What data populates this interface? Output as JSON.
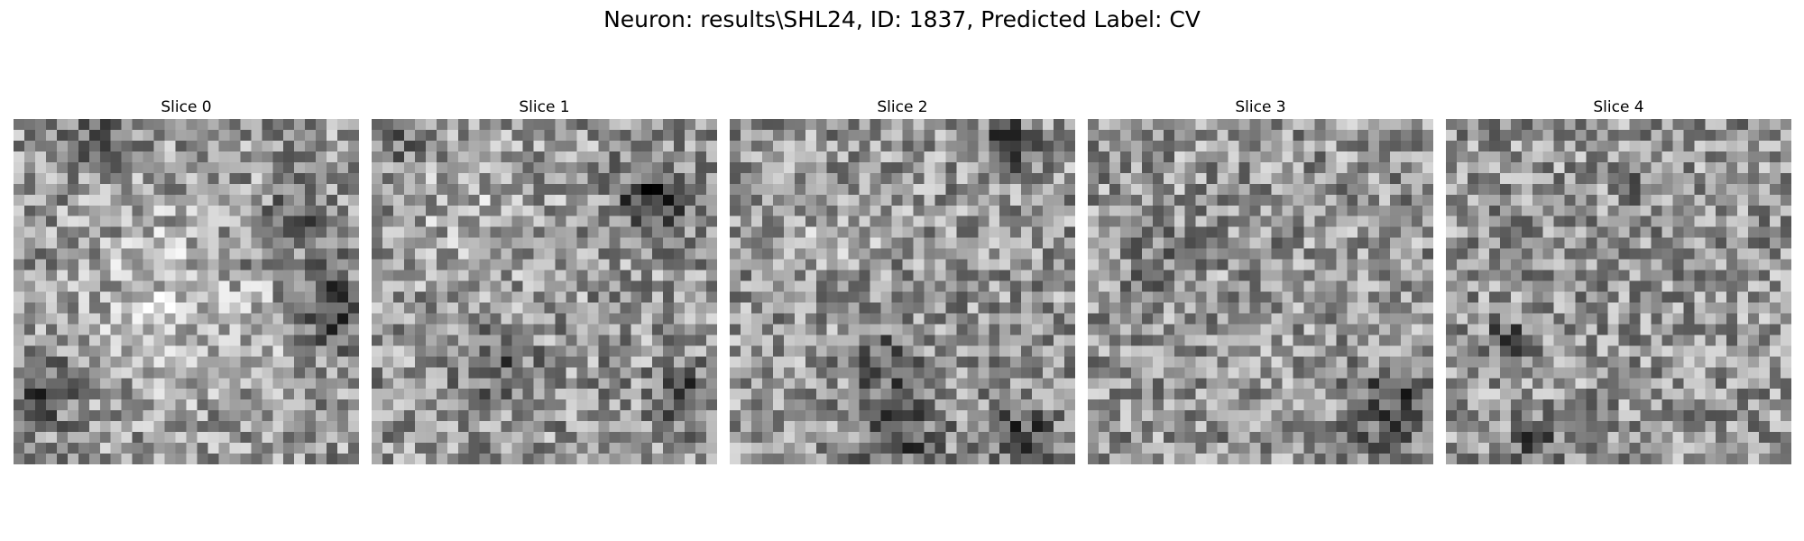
{
  "figure": {
    "title": "Neuron: results\\SHL24, ID: 1837, Predicted Label: CV",
    "colormap": "gray"
  },
  "panels": [
    {
      "title": "Slice 0",
      "grid": 32,
      "seed": 11,
      "blobs": [
        {
          "r": 0.52,
          "c": 0.5,
          "rad": 0.3,
          "a": 42
        },
        {
          "r": 0.55,
          "c": 0.93,
          "rad": 0.1,
          "a": -110
        },
        {
          "r": 0.3,
          "c": 0.82,
          "rad": 0.1,
          "a": -60
        },
        {
          "r": 0.05,
          "c": 0.25,
          "rad": 0.1,
          "a": -55
        },
        {
          "r": 0.8,
          "c": 0.05,
          "rad": 0.12,
          "a": -60
        },
        {
          "r": 0.4,
          "c": 0.65,
          "rad": 0.07,
          "a": -45
        }
      ]
    },
    {
      "title": "Slice 1",
      "grid": 32,
      "seed": 23,
      "blobs": [
        {
          "r": 0.22,
          "c": 0.82,
          "rad": 0.09,
          "a": -120
        },
        {
          "r": 0.72,
          "c": 0.36,
          "rad": 0.1,
          "a": -55
        },
        {
          "r": 0.82,
          "c": 0.92,
          "rad": 0.08,
          "a": -80
        },
        {
          "r": 0.3,
          "c": 0.3,
          "rad": 0.22,
          "a": 25
        },
        {
          "r": 0.05,
          "c": 0.05,
          "rad": 0.07,
          "a": -50
        }
      ]
    },
    {
      "title": "Slice 2",
      "grid": 32,
      "seed": 37,
      "blobs": [
        {
          "r": 0.05,
          "c": 0.82,
          "rad": 0.07,
          "a": -110
        },
        {
          "r": 0.93,
          "c": 0.5,
          "rad": 0.12,
          "a": -70
        },
        {
          "r": 0.93,
          "c": 0.85,
          "rad": 0.1,
          "a": -80
        },
        {
          "r": 0.7,
          "c": 0.45,
          "rad": 0.1,
          "a": -60
        },
        {
          "r": 0.3,
          "c": 0.3,
          "rad": 0.15,
          "a": 20
        }
      ]
    },
    {
      "title": "Slice 3",
      "grid": 32,
      "seed": 51,
      "blobs": [
        {
          "r": 0.85,
          "c": 0.9,
          "rad": 0.12,
          "a": -80
        },
        {
          "r": 0.4,
          "c": 0.2,
          "rad": 0.1,
          "a": -35
        }
      ]
    },
    {
      "title": "Slice 4",
      "grid": 32,
      "seed": 67,
      "blobs": [
        {
          "r": 0.65,
          "c": 0.17,
          "rad": 0.05,
          "a": -120
        },
        {
          "r": 0.2,
          "c": 0.55,
          "rad": 0.06,
          "a": -45
        },
        {
          "r": 0.95,
          "c": 0.25,
          "rad": 0.06,
          "a": -70
        }
      ]
    }
  ]
}
